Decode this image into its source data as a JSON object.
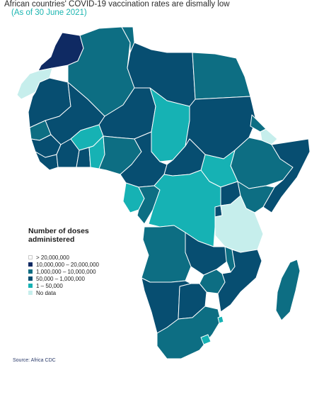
{
  "title": "African countries' COVID-19 vaccination rates are dismally low",
  "subtitle": "(As of 30 June 2021)",
  "legend": {
    "title": "Number of doses administered",
    "items": [
      {
        "label": "> 20,000,000",
        "color": "#ffffff"
      },
      {
        "label": "10,000,000 – 20,000,000",
        "color": "#0f2a63"
      },
      {
        "label": "1,000,000 – 10,000,000",
        "color": "#0d6e83"
      },
      {
        "label": "50,000 – 1,000,000",
        "color": "#074e71"
      },
      {
        "label": "1 – 50,000",
        "color": "#16b2b4"
      },
      {
        "label": "No data",
        "color": "#c6eeec"
      }
    ]
  },
  "source": "Source: Africa CDC"
}
